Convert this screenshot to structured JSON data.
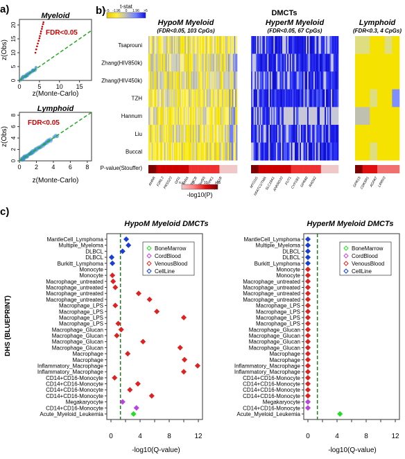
{
  "panels": {
    "a_label": "a)",
    "b_label": "b)",
    "c_label": "c)"
  },
  "panel_a": {
    "myeloid": {
      "title": "Myeloid",
      "annotation": "FDR<0.05",
      "xlabel": "z(Monte-Carlo)",
      "ylabel": "z(Obs)",
      "xticks": [
        "0",
        "5",
        "10",
        "15"
      ],
      "yticks": [
        "0",
        "5",
        "10",
        "15",
        "20"
      ],
      "xlim": [
        0,
        18
      ],
      "ylim": [
        0,
        22
      ],
      "colors": {
        "density": "#3a90cc",
        "sig": "#cc0000",
        "diag": "#22aa22"
      }
    },
    "lymphoid": {
      "title": "Lymphoid",
      "annotation": "FDR<0.05",
      "xlabel": "z(Monte-Carlo)",
      "ylabel": "z(Obs)",
      "xticks": [
        "0",
        "2",
        "4",
        "6",
        "8"
      ],
      "yticks": [
        "0",
        "2",
        "4",
        "6",
        "8"
      ],
      "xlim": [
        0,
        8.5
      ],
      "ylim": [
        0,
        8.5
      ],
      "colors": {
        "density": "#3a90cc",
        "diag": "#22aa22"
      }
    }
  },
  "panel_b": {
    "title": "DMCTs",
    "colorkey": {
      "title": "t-stat",
      "ticks": [
        "<-5",
        "-1.96",
        "0",
        "1.96",
        ">5"
      ],
      "colors": [
        "#e8c800",
        "#ffee40",
        "#bbbbbb",
        "#6f80ff",
        "#1010e0"
      ]
    },
    "rows": [
      "Tsaprouni",
      "Zhang(HIV850k)",
      "Zhang(HIV450k)",
      "TZH",
      "Hannum",
      "Liu",
      "Buccal"
    ],
    "pvalue_row_label": "P-value(Stouffer)",
    "blocks": [
      {
        "title": "HypoM Myeloid",
        "subtitle": "(FDR<0.05, 103 CpGs)",
        "genes": [
          "AHRR",
          "F2RL3",
          "PRSS23",
          "GFI1",
          "RARA",
          "PRKCB",
          "C5orf55",
          "ITPK1",
          "ABCG1B"
        ]
      },
      {
        "title": "HyperM Myeloid",
        "subtitle": "(FDR<0.05, 67 CpGs)",
        "genes": [
          "MYO1G",
          "NFATC1/TMA",
          "SLC19A1",
          "ANKRD33",
          "FUT1",
          "CYP1B1",
          "GPR68",
          "RAD52"
        ]
      },
      {
        "title": "Lymphoid",
        "subtitle": "(FDR<0.3, 4 CpGs)",
        "genes": [
          "GPR15",
          "CDK5R1",
          "AGPAT",
          "LRRN3"
        ]
      }
    ],
    "plegend": {
      "ticks": [
        "n.s.",
        "5",
        "10",
        ">15"
      ],
      "label": "-log10(P)",
      "colors": [
        "#f0c8c8",
        "#ff8080",
        "#e01010",
        "#7a0000"
      ]
    }
  },
  "chart_data": [
    {
      "type": "scatter",
      "title": "Myeloid",
      "annotation": "FDR<0.05",
      "xlabel": "z(Monte-Carlo)",
      "ylabel": "z(Obs)",
      "xlim": [
        0,
        18
      ],
      "ylim": [
        0,
        22
      ],
      "series": [
        {
          "name": "FDR<0.05",
          "points": [
            [
              4.0,
              10
            ],
            [
              4.2,
              11.2
            ],
            [
              4.4,
              12.3
            ],
            [
              4.6,
              13.3
            ],
            [
              4.8,
              14.3
            ],
            [
              5.0,
              15.2
            ],
            [
              5.1,
              16.0
            ],
            [
              5.3,
              16.9
            ],
            [
              5.4,
              17.7
            ],
            [
              5.6,
              18.6
            ],
            [
              5.7,
              19.4
            ],
            [
              5.9,
              20.3
            ],
            [
              6.0,
              21.0
            ]
          ]
        }
      ]
    },
    {
      "type": "scatter",
      "title": "Lymphoid",
      "annotation": "FDR<0.05",
      "xlabel": "z(Monte-Carlo)",
      "ylabel": "z(Obs)",
      "xlim": [
        0,
        8.5
      ],
      "ylim": [
        0,
        8.5
      ],
      "series": []
    },
    {
      "type": "heatmap",
      "title": "DMCTs",
      "rows": [
        "Tsaprouni",
        "Zhang(HIV850k)",
        "Zhang(HIV450k)",
        "TZH",
        "Hannum",
        "Liu",
        "Buccal"
      ],
      "blocks": [
        {
          "name": "HypoM Myeloid",
          "n": 103
        },
        {
          "name": "HyperM Myeloid",
          "n": 67
        },
        {
          "name": "Lymphoid",
          "n": 4
        }
      ]
    },
    {
      "type": "scatter",
      "title": "HypoM Myeloid DMCTs",
      "xlabel": "-log10(Q-value)",
      "ylabel": "DHS (BLUEPRINT)",
      "xlim": [
        0,
        12
      ],
      "threshold": 1.3,
      "legend": [
        "BoneMarrow",
        "CordBlood",
        "VenousBlood",
        "CellLine"
      ],
      "colors": {
        "BoneMarrow": "#22dd22",
        "CordBlood": "#bb44dd",
        "VenousBlood": "#dd2222",
        "CellLine": "#1a3fd0"
      },
      "categories": [
        "MantleCell_Lymphoma",
        "Multiple_Myeloma",
        "DLBCL",
        "DLBCL",
        "Burkitt_Lymphoma",
        "Monocyte",
        "Monocyte",
        "Macrophage_untreated",
        "Macrophage_untreated",
        "Macrophage_untreated",
        "Macrophage_untreated",
        "Macrophage_LPS",
        "Macrophage_LPS",
        "Macrophage_LPS",
        "Macrophage_LPS",
        "Macrophage_Glucan",
        "Macrophage_Glucan",
        "Macrophage_Glucan",
        "Macrophage_Glucan",
        "Macrophage",
        "Macrophage",
        "Inflammatory_Macrophage",
        "Inflammatory_Macrophage",
        "CD14+CD16-Monocyte",
        "CD14+CD16-Monocyte",
        "CD14+CD16-Monocyte",
        "CD14+CD16-Monocyte",
        "Megakaryocyte",
        "CD14+CD16-Monocyte",
        "Acute_Myeloid_Leukemia"
      ],
      "groups": [
        "CellLine",
        "CellLine",
        "CellLine",
        "CellLine",
        "CellLine",
        "VenousBlood",
        "VenousBlood",
        "VenousBlood",
        "VenousBlood",
        "VenousBlood",
        "VenousBlood",
        "VenousBlood",
        "VenousBlood",
        "VenousBlood",
        "VenousBlood",
        "VenousBlood",
        "VenousBlood",
        "VenousBlood",
        "VenousBlood",
        "VenousBlood",
        "VenousBlood",
        "VenousBlood",
        "VenousBlood",
        "VenousBlood",
        "VenousBlood",
        "VenousBlood",
        "VenousBlood",
        "CordBlood",
        "CordBlood",
        "BoneMarrow"
      ],
      "values": [
        2.1,
        2.4,
        1.6,
        0.1,
        0.2,
        4.9,
        0.2,
        0.3,
        0.6,
        3.8,
        5.3,
        0.6,
        6.3,
        10.0,
        1.0,
        1.4,
        0.8,
        4.4,
        9.5,
        2.3,
        10.1,
        11.9,
        10.0,
        0.5,
        3.7,
        2.6,
        5.6,
        1.6,
        3.5,
        3.1
      ]
    },
    {
      "type": "scatter",
      "title": "HyperM Myeloid DMCTs",
      "xlabel": "-log10(Q-value)",
      "xlim": [
        0,
        12
      ],
      "threshold": 1.3,
      "legend": [
        "BoneMarrow",
        "CordBlood",
        "VenousBlood",
        "CellLine"
      ],
      "groups": [
        "CellLine",
        "CellLine",
        "CellLine",
        "CellLine",
        "CellLine",
        "VenousBlood",
        "VenousBlood",
        "VenousBlood",
        "VenousBlood",
        "VenousBlood",
        "VenousBlood",
        "VenousBlood",
        "VenousBlood",
        "VenousBlood",
        "VenousBlood",
        "VenousBlood",
        "VenousBlood",
        "VenousBlood",
        "VenousBlood",
        "VenousBlood",
        "VenousBlood",
        "VenousBlood",
        "VenousBlood",
        "VenousBlood",
        "VenousBlood",
        "VenousBlood",
        "VenousBlood",
        "CordBlood",
        "CordBlood",
        "BoneMarrow"
      ],
      "values": [
        0,
        0,
        0,
        0,
        0,
        0,
        0,
        0,
        0,
        0,
        0,
        0,
        0,
        0,
        0,
        0,
        0,
        0,
        0,
        0,
        0,
        0,
        0,
        0,
        0,
        0,
        0,
        0,
        0,
        4.4
      ]
    }
  ]
}
